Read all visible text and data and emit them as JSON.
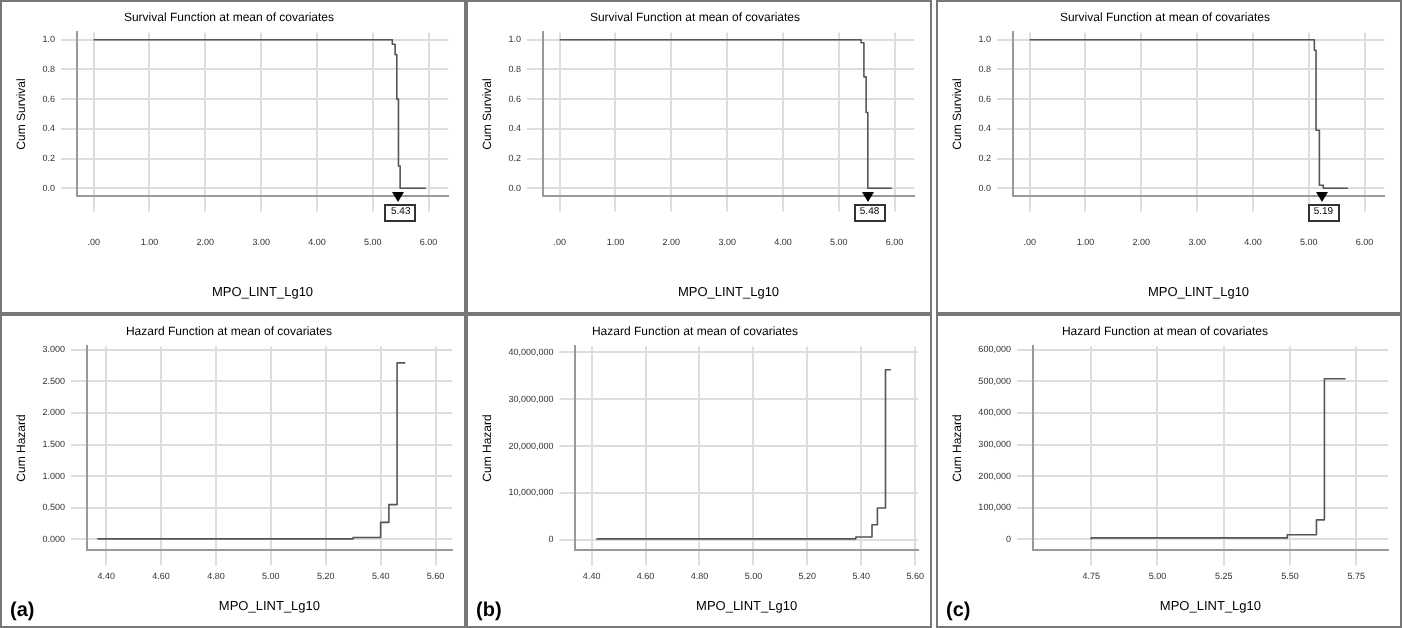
{
  "chart_data": [
    {
      "type": "step",
      "title": "Survival Function at mean of covariates",
      "xlabel": "MPO_LINT_Lg10",
      "ylabel": "Cum Survival",
      "color": "#555555",
      "grid": true,
      "x": [
        0,
        5.35,
        5.4,
        5.43,
        5.46,
        5.49,
        5.52,
        5.95
      ],
      "values": [
        1,
        1,
        0.97,
        0.9,
        0.6,
        0.15,
        0,
        0
      ],
      "xlim": [
        -0.3,
        6.35
      ],
      "ylim": [
        -0.05,
        1.05
      ],
      "xticks": [
        {
          "value": 0,
          "label": ".00"
        },
        {
          "value": 1,
          "label": "1.00"
        },
        {
          "value": 2,
          "label": "2.00"
        },
        {
          "value": 3,
          "label": "3.00"
        },
        {
          "value": 4,
          "label": "4.00"
        },
        {
          "value": 5,
          "label": "5.00"
        },
        {
          "value": 6,
          "label": "6.00"
        }
      ],
      "yticks": [
        {
          "value": 0,
          "label": "0.0"
        },
        0.2,
        0.4,
        0.6,
        0.8,
        {
          "value": 1,
          "label": "1.0"
        }
      ],
      "annotations": [
        {
          "text": "5.43",
          "x": 5.43,
          "y": 0
        }
      ]
    },
    {
      "type": "step",
      "title": "Survival Function at mean of covariates",
      "xlabel": "MPO_LINT_Lg10",
      "ylabel": "Cum Survival",
      "color": "#555555",
      "grid": true,
      "x": [
        0,
        5.4,
        5.45,
        5.49,
        5.52,
        5.55,
        5.95
      ],
      "values": [
        1,
        1,
        0.98,
        0.75,
        0.51,
        0,
        0
      ],
      "xlim": [
        -0.3,
        6.35
      ],
      "ylim": [
        -0.05,
        1.05
      ],
      "xticks": [
        {
          "value": 0,
          "label": ".00"
        },
        {
          "value": 1,
          "label": "1.00"
        },
        {
          "value": 2,
          "label": "2.00"
        },
        {
          "value": 3,
          "label": "3.00"
        },
        {
          "value": 4,
          "label": "4.00"
        },
        {
          "value": 5,
          "label": "5.00"
        },
        {
          "value": 6,
          "label": "6.00"
        }
      ],
      "yticks": [
        {
          "value": 0,
          "label": "0.0"
        },
        0.2,
        0.4,
        0.6,
        0.8,
        {
          "value": 1,
          "label": "1.0"
        }
      ],
      "annotations": [
        {
          "text": "5.48",
          "x": 5.48,
          "y": 0
        }
      ]
    },
    {
      "type": "step",
      "title": "Survival Function at mean of covariates",
      "xlabel": "MPO_LINT_Lg10",
      "ylabel": "Cum Survival",
      "color": "#555555",
      "grid": true,
      "x": [
        0,
        5.1,
        5.13,
        5.19,
        5.26,
        5.3,
        5.7
      ],
      "values": [
        1,
        1,
        0.93,
        0.39,
        0.02,
        0,
        0
      ],
      "xlim": [
        -0.3,
        6.35
      ],
      "ylim": [
        -0.05,
        1.05
      ],
      "xticks": [
        {
          "value": 0,
          "label": ".00"
        },
        {
          "value": 1,
          "label": "1.00"
        },
        {
          "value": 2,
          "label": "2.00"
        },
        {
          "value": 3,
          "label": "3.00"
        },
        {
          "value": 4,
          "label": "4.00"
        },
        {
          "value": 5,
          "label": "5.00"
        },
        {
          "value": 6,
          "label": "6.00"
        }
      ],
      "yticks": [
        {
          "value": 0,
          "label": "0.0"
        },
        0.2,
        0.4,
        0.6,
        0.8,
        {
          "value": 1,
          "label": "1.0"
        }
      ],
      "annotations": [
        {
          "text": "5.19",
          "x": 5.19,
          "y": 0
        }
      ]
    },
    {
      "type": "step",
      "title": "Hazard Function at mean of covariates",
      "xlabel": "MPO_LINT_Lg10",
      "ylabel": "Cum Hazard",
      "color": "#555555",
      "grid": true,
      "x": [
        4.37,
        5.3,
        5.4,
        5.43,
        5.46,
        5.49
      ],
      "values": [
        0,
        0.01,
        0.03,
        0.27,
        0.55,
        2.79
      ],
      "xlim": [
        4.33,
        5.66
      ],
      "ylim": [
        -0.16,
        3.05
      ],
      "xticks": [
        {
          "value": 4.4,
          "label": "4.40"
        },
        {
          "value": 4.6,
          "label": "4.60"
        },
        {
          "value": 4.8,
          "label": "4.80"
        },
        {
          "value": 5,
          "label": "5.00"
        },
        {
          "value": 5.2,
          "label": "5.20"
        },
        {
          "value": 5.4,
          "label": "5.40"
        },
        {
          "value": 5.6,
          "label": "5.60"
        }
      ],
      "yticks": [
        {
          "value": 0,
          "label": "0.000"
        },
        {
          "value": 0.5,
          "label": "0.500"
        },
        {
          "value": 1,
          "label": "1.000"
        },
        {
          "value": 1.5,
          "label": "1.500"
        },
        {
          "value": 2,
          "label": "2.000"
        },
        {
          "value": 2.5,
          "label": "2.500"
        },
        {
          "value": 3,
          "label": "3.000"
        }
      ],
      "annotations": [
        "(a)"
      ]
    },
    {
      "type": "step",
      "title": "Hazard Function at mean of covariates",
      "xlabel": "MPO_LINT_Lg10",
      "ylabel": "Cum Hazard",
      "color": "#555555",
      "grid": true,
      "x": [
        4.42,
        5.38,
        5.44,
        5.46,
        5.49,
        5.51
      ],
      "values": [
        0,
        200000,
        600000,
        3200000,
        6800000,
        36300000
      ],
      "xlim": [
        4.34,
        5.61
      ],
      "ylim": [
        -2100000,
        41300000
      ],
      "xticks": [
        {
          "value": 4.4,
          "label": "4.40"
        },
        {
          "value": 4.6,
          "label": "4.60"
        },
        {
          "value": 4.8,
          "label": "4.80"
        },
        {
          "value": 5,
          "label": "5.00"
        },
        {
          "value": 5.2,
          "label": "5.20"
        },
        {
          "value": 5.4,
          "label": "5.40"
        },
        {
          "value": 5.6,
          "label": "5.60"
        }
      ],
      "yticks": [
        0,
        {
          "value": 10000000,
          "label": "10,000,000"
        },
        {
          "value": 20000000,
          "label": "20,000,000"
        },
        {
          "value": 30000000,
          "label": "30,000,000"
        },
        {
          "value": 40000000,
          "label": "40,000,000"
        }
      ],
      "annotations": [
        "(b)"
      ]
    },
    {
      "type": "step",
      "title": "Hazard Function at mean of covariates",
      "xlabel": "MPO_LINT_Lg10",
      "ylabel": "Cum Hazard",
      "color": "#555555",
      "grid": true,
      "x": [
        4.75,
        5.49,
        5.6,
        5.63,
        5.71
      ],
      "values": [
        0,
        5000,
        15000,
        62000,
        508000
      ],
      "xlim": [
        4.53,
        5.87
      ],
      "ylim": [
        -32000,
        610000
      ],
      "xticks": [
        4.75,
        {
          "value": 5,
          "label": "5.00"
        },
        5.25,
        {
          "value": 5.5,
          "label": "5.50"
        },
        5.75
      ],
      "yticks": [
        0,
        {
          "value": 100000,
          "label": "100,000"
        },
        {
          "value": 200000,
          "label": "200,000"
        },
        {
          "value": 300000,
          "label": "300,000"
        },
        {
          "value": 400000,
          "label": "400,000"
        },
        {
          "value": 500000,
          "label": "500,000"
        },
        {
          "value": 600000,
          "label": "600,000"
        }
      ],
      "annotations": [
        "(c)"
      ]
    }
  ]
}
